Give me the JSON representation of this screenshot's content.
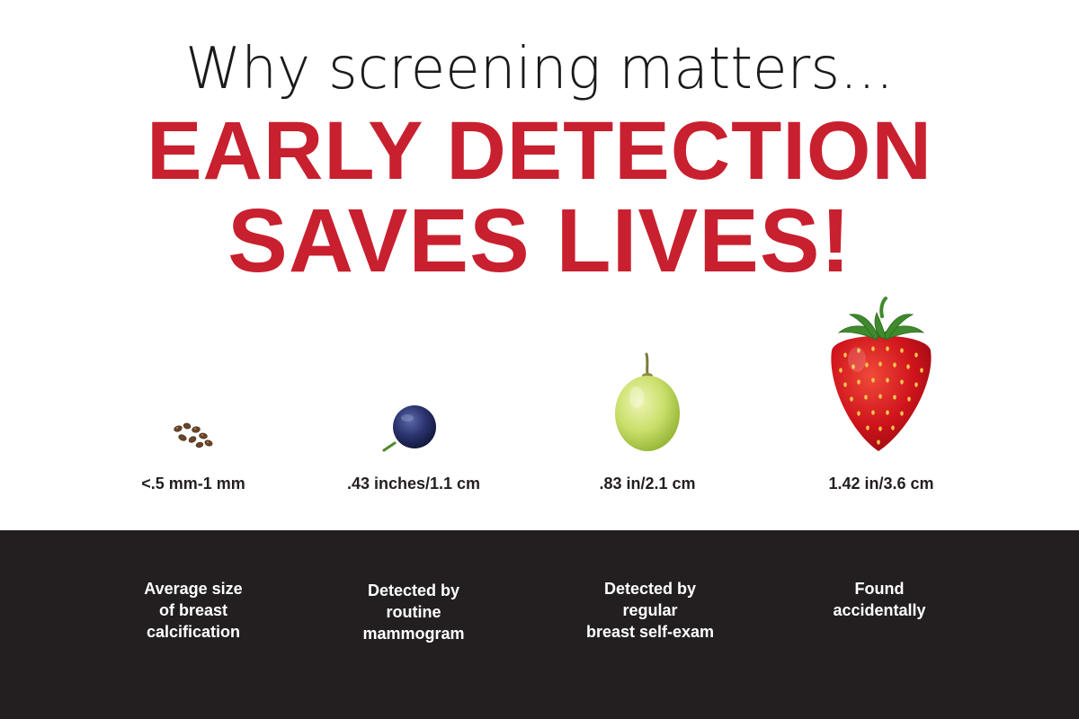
{
  "header": {
    "line1": "Why screening matters...",
    "line2": "EARLY DETECTION",
    "line3": "SAVES LIVES!"
  },
  "items": [
    {
      "image": "seeds-icon",
      "size_label": "<.5 mm-1 mm",
      "caption": "Average size\nof breast\ncalcification"
    },
    {
      "image": "blueberry-icon",
      "size_label": ".43 inches/1.1 cm",
      "caption": "Detected by\nroutine\nmammogram"
    },
    {
      "image": "grape-icon",
      "size_label": ".83 in/2.1 cm",
      "caption": "Detected by\nregular\nbreast self-exam"
    },
    {
      "image": "strawberry-icon",
      "size_label": "1.42 in/3.6 cm",
      "caption": "Found\naccidentally"
    }
  ],
  "colors": {
    "accent": "#c8202f",
    "text_dark": "#231f20",
    "footer_bg": "#231f20",
    "footer_text": "#ffffff"
  }
}
